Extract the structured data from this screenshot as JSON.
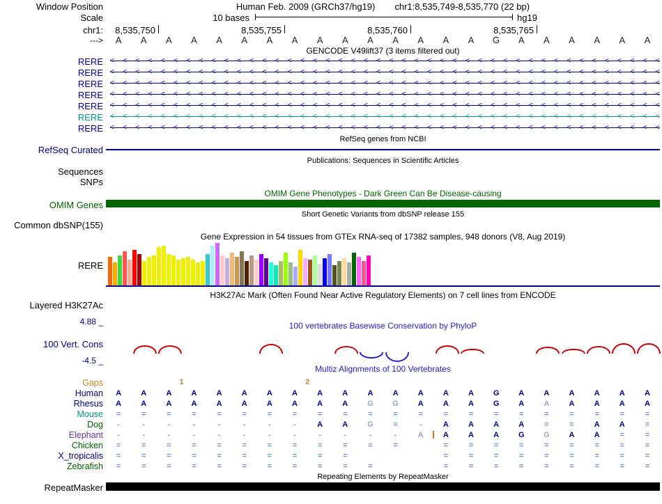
{
  "colors": {
    "track_line": "#00008B",
    "letter_dark": "#00008B",
    "letter_light": "#9AA7CC",
    "equals_sign": "#7C8FC9",
    "dash_sign": "#8A97C0",
    "arc_positive": "#CC0000",
    "arc_negative": "#2222CC",
    "insertion_marker": "#CC7722",
    "omim_bar": "#006400",
    "repeat_bar": "#000000",
    "gaps_orange": "#BF8830"
  },
  "header": {
    "window_position_label": "Window Position",
    "assembly_title": "Human Feb. 2009 (GRCh37/hg19)",
    "position_title": "chr1:8,535,749-8,535,770 (22 bp)",
    "scale_label": "Scale",
    "scale_text": "10 bases",
    "assembly_short": "hg19",
    "chrom_label": "chr1:",
    "strand_label": "--->",
    "coords": [
      {
        "label": "8,535,750",
        "tick_x": 227
      },
      {
        "label": "8,535,755",
        "tick_x": 408
      },
      {
        "label": "8,535,760",
        "tick_x": 589
      },
      {
        "label": "8,535,765",
        "tick_x": 770
      }
    ]
  },
  "sequence": {
    "bases": [
      "A",
      "A",
      "A",
      "A",
      "A",
      "A",
      "A",
      "A",
      "A",
      "A",
      "A",
      "A",
      "A",
      "A",
      "A",
      "G",
      "A",
      "A",
      "A",
      "A",
      "A",
      "A"
    ]
  },
  "tracks": {
    "gencode": {
      "title": "GENCODE V49lift37 (3 items filtered out)",
      "genes": [
        {
          "label": "RERE",
          "color": "#00008B"
        },
        {
          "label": "RERE",
          "color": "#00008B"
        },
        {
          "label": "RERE",
          "color": "#00008B"
        },
        {
          "label": "RERE",
          "color": "#00008B"
        },
        {
          "label": "RERE",
          "color": "#00008B"
        },
        {
          "label": "RERE",
          "color": "#009688"
        },
        {
          "label": "RERE",
          "color": "#00008B"
        }
      ]
    },
    "refseq": {
      "note": "RefSeq genes from NCBI",
      "label": "RefSeq Curated"
    },
    "publications": {
      "note": "Publications: Sequences in Scientific Articles",
      "sequences_label": "Sequences",
      "snps_label": "SNPs"
    },
    "omim": {
      "note": "OMIM Gene Phenotypes - Dark Green Can Be Disease-causing",
      "label": "OMIM Genes",
      "bar_color": "#006400"
    },
    "dbsnp": {
      "note": "Short Genetic Variants from dbSNP release 155",
      "label": "Common dbSNP(155)"
    },
    "gtex": {
      "note": "Gene Expression in 54 tissues from GTEx RNA-seq of 17382 samples, 948 donors (V8, Aug 2019)",
      "label": "RERE"
    },
    "h3k27ac": {
      "note": "H3K27Ac Mark (Often Found Near Active Regulatory Elements) on 7 cell lines from ENCODE",
      "label": "Layered H3K27Ac"
    },
    "cons": {
      "max_label": "4.88 _",
      "title": "100 vertebrates Basewise Conservation by PhyloP",
      "label": "100 Vert. Cons",
      "min_label": "-4.5 _"
    },
    "multiz": {
      "title": "Multiz Alignments of 100 Vertebrates",
      "gaps": {
        "label": "Gaps",
        "color": "#BF8830",
        "items": [
          {
            "after_col": 3,
            "text": "1"
          },
          {
            "after_col": 8,
            "text": "2"
          }
        ]
      },
      "rows": [
        {
          "name": "Human",
          "color": "#00008B",
          "cells": [
            "A",
            "A",
            "A",
            "A",
            "A",
            "A",
            "A",
            "A",
            "A",
            "A",
            "A",
            "A",
            "A",
            "A",
            "A",
            "G",
            "A",
            "A",
            "A",
            "A",
            "A",
            "A"
          ],
          "light": []
        },
        {
          "name": "Rhesus",
          "color": "#00008B",
          "cells": [
            "A",
            "A",
            "A",
            "A",
            "A",
            "A",
            "A",
            "A",
            "A",
            "A",
            "G",
            "G",
            "A",
            "A",
            "A",
            "G",
            "A",
            "A",
            "A",
            "A",
            "A",
            "A"
          ],
          "light": [
            11,
            12,
            18
          ]
        },
        {
          "name": "Mouse",
          "color": "#009688",
          "cells": [
            "=",
            "=",
            "=",
            "=",
            "=",
            "=",
            "=",
            "=",
            "=",
            "=",
            "=",
            "=",
            "=",
            "=",
            "=",
            "=",
            "=",
            "=",
            "=",
            "=",
            "=",
            "="
          ],
          "light": []
        },
        {
          "name": "Dog",
          "color": "#006400",
          "cells": [
            "-",
            "-",
            "-",
            "-",
            "-",
            "-",
            "-",
            "-",
            "A",
            "A",
            "G",
            "=",
            "-",
            "A",
            "A",
            "A",
            "A",
            "=",
            "=",
            "A",
            "A",
            "="
          ],
          "light": [
            11
          ]
        },
        {
          "name": "Elephant",
          "color": "#6A33A0",
          "cells": [
            "-",
            "-",
            "-",
            "-",
            "-",
            "-",
            "-",
            "-",
            "-",
            "-",
            "-",
            "-",
            "A",
            "A",
            "A",
            "A",
            "G",
            "G",
            "A",
            "A",
            "=",
            "="
          ],
          "light": [
            13,
            18
          ],
          "insert_after": 13
        },
        {
          "name": "Chicken",
          "color": "#006400",
          "cells": [
            "=",
            "=",
            "=",
            "=",
            "=",
            "=",
            "=",
            "=",
            "=",
            "=",
            "=",
            "=",
            "",
            "=",
            "=",
            "=",
            "=",
            "=",
            "=",
            "=",
            "=",
            "="
          ],
          "light": []
        },
        {
          "name": "X_tropicalis",
          "color": "#00008B",
          "cells": [
            "=",
            "=",
            "=",
            "=",
            "=",
            "=",
            "=",
            "=",
            "=",
            "=",
            "",
            "",
            "",
            "=",
            "=",
            "=",
            "=",
            "=",
            "=",
            "=",
            "=",
            "="
          ],
          "light": []
        },
        {
          "name": "Zebrafish",
          "color": "#006400",
          "cells": [
            "=",
            "=",
            "=",
            "=",
            "=",
            "=",
            "=",
            "=",
            "=",
            "=",
            "=",
            "",
            "",
            "=",
            "=",
            "=",
            "=",
            "=",
            "=",
            "=",
            "=",
            "="
          ],
          "light": []
        }
      ]
    },
    "repeatmasker": {
      "note": "Repeating Elements by RepeatMasker",
      "label": "RepeatMasker",
      "bar_color": "#000000"
    }
  },
  "chart_data": {
    "gtex": {
      "type": "bar",
      "title": "Gene Expression in 54 tissues from GTEx RNA-seq of 17382 samples, 948 donors (V8, Aug 2019)",
      "bars": [
        {
          "color": "#FF6600",
          "h": 42
        },
        {
          "color": "#FFAA00",
          "h": 34
        },
        {
          "color": "#33DD33",
          "h": 44
        },
        {
          "color": "#FF5555",
          "h": 50
        },
        {
          "color": "#FFAA99",
          "h": 38
        },
        {
          "color": "#FF0000",
          "h": 52
        },
        {
          "color": "#AA0000",
          "h": 46
        },
        {
          "color": "#EEEE00",
          "h": 36
        },
        {
          "color": "#EEEE00",
          "h": 42
        },
        {
          "color": "#EEEE00",
          "h": 44
        },
        {
          "color": "#EEEE00",
          "h": 56
        },
        {
          "color": "#EEEE00",
          "h": 58
        },
        {
          "color": "#EEEE00",
          "h": 46
        },
        {
          "color": "#EEEE00",
          "h": 44
        },
        {
          "color": "#EEEE00",
          "h": 38
        },
        {
          "color": "#EEEE00",
          "h": 40
        },
        {
          "color": "#EEEE00",
          "h": 42
        },
        {
          "color": "#EEEE00",
          "h": 38
        },
        {
          "color": "#EEEE00",
          "h": 34
        },
        {
          "color": "#EEEE00",
          "h": 36
        },
        {
          "color": "#33CCCC",
          "h": 46
        },
        {
          "color": "#AAEEFF",
          "h": 58
        },
        {
          "color": "#CC66FF",
          "h": 62
        },
        {
          "color": "#FFCCCC",
          "h": 44
        },
        {
          "color": "#CCAADD",
          "h": 40
        },
        {
          "color": "#EEBB77",
          "h": 48
        },
        {
          "color": "#CC9955",
          "h": 42
        },
        {
          "color": "#8B7355",
          "h": 50
        },
        {
          "color": "#552200",
          "h": 36
        },
        {
          "color": "#BB9988",
          "h": 44
        },
        {
          "color": "#FFCCCC",
          "h": 38
        },
        {
          "color": "#9900FF",
          "h": 46
        },
        {
          "color": "#660099",
          "h": 40
        },
        {
          "color": "#22FFDD",
          "h": 34
        },
        {
          "color": "#00EEBB",
          "h": 30
        },
        {
          "color": "#AABB66",
          "h": 36
        },
        {
          "color": "#99FF00",
          "h": 48
        },
        {
          "color": "#99BB88",
          "h": 34
        },
        {
          "color": "#AAAAFF",
          "h": 28
        },
        {
          "color": "#FFD700",
          "h": 52
        },
        {
          "color": "#FFAAFF",
          "h": 40
        },
        {
          "color": "#995522",
          "h": 38
        },
        {
          "color": "#AAFF99",
          "h": 44
        },
        {
          "color": "#DDDDDD",
          "h": 32
        },
        {
          "color": "#0000FF",
          "h": 40
        },
        {
          "color": "#7777FF",
          "h": 46
        },
        {
          "color": "#555522",
          "h": 30
        },
        {
          "color": "#778855",
          "h": 36
        },
        {
          "color": "#FFDD99",
          "h": 40
        },
        {
          "color": "#AAAAAA",
          "h": 34
        },
        {
          "color": "#006600",
          "h": 48
        },
        {
          "color": "#FF66FF",
          "h": 42
        },
        {
          "color": "#FF5599",
          "h": 36
        },
        {
          "color": "#FF00BB",
          "h": 44
        }
      ]
    },
    "conservation": {
      "type": "area",
      "title": "100 vertebrates Basewise Conservation by PhyloP",
      "y_range": [
        -4.5,
        4.88
      ],
      "arcs": [
        {
          "col": 2,
          "h": 10
        },
        {
          "col": 3,
          "h": 10
        },
        {
          "col": 7,
          "h": 12
        },
        {
          "col": 10,
          "h": 9
        },
        {
          "col": 11,
          "h": -7
        },
        {
          "col": 12,
          "h": -12
        },
        {
          "col": 14,
          "h": 10
        },
        {
          "col": 15,
          "h": 5
        },
        {
          "col": 18,
          "h": 8
        },
        {
          "col": 19,
          "h": 5
        },
        {
          "col": 20,
          "h": 9
        },
        {
          "col": 21,
          "h": 13
        },
        {
          "col": 22,
          "h": 13
        }
      ]
    }
  }
}
